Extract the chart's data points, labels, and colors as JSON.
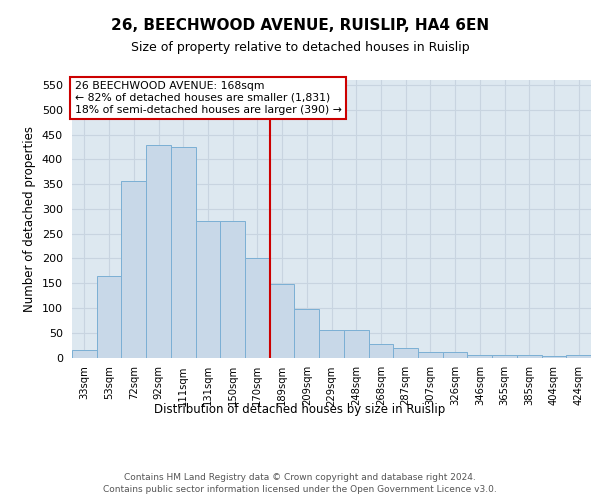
{
  "title": "26, BEECHWOOD AVENUE, RUISLIP, HA4 6EN",
  "subtitle": "Size of property relative to detached houses in Ruislip",
  "xlabel": "Distribution of detached houses by size in Ruislip",
  "ylabel": "Number of detached properties",
  "bar_labels": [
    "33sqm",
    "53sqm",
    "72sqm",
    "92sqm",
    "111sqm",
    "131sqm",
    "150sqm",
    "170sqm",
    "189sqm",
    "209sqm",
    "229sqm",
    "248sqm",
    "268sqm",
    "287sqm",
    "307sqm",
    "326sqm",
    "346sqm",
    "365sqm",
    "385sqm",
    "404sqm",
    "424sqm"
  ],
  "bar_values": [
    15,
    165,
    357,
    428,
    425,
    276,
    276,
    201,
    149,
    97,
    55,
    55,
    28,
    20,
    12,
    12,
    6,
    5,
    5,
    3,
    5
  ],
  "bar_color": "#c8d8e8",
  "bar_edge_color": "#7bafd4",
  "grid_color": "#c8d4e0",
  "background_color": "#dde8f0",
  "vline_x_index": 7,
  "vline_color": "#cc0000",
  "annotation_title": "26 BEECHWOOD AVENUE: 168sqm",
  "annotation_line1": "← 82% of detached houses are smaller (1,831)",
  "annotation_line2": "18% of semi-detached houses are larger (390) →",
  "annotation_box_color": "#ffffff",
  "annotation_box_edge_color": "#cc0000",
  "ylim": [
    0,
    560
  ],
  "yticks": [
    0,
    50,
    100,
    150,
    200,
    250,
    300,
    350,
    400,
    450,
    500,
    550
  ],
  "footer_line1": "Contains HM Land Registry data © Crown copyright and database right 2024.",
  "footer_line2": "Contains public sector information licensed under the Open Government Licence v3.0."
}
